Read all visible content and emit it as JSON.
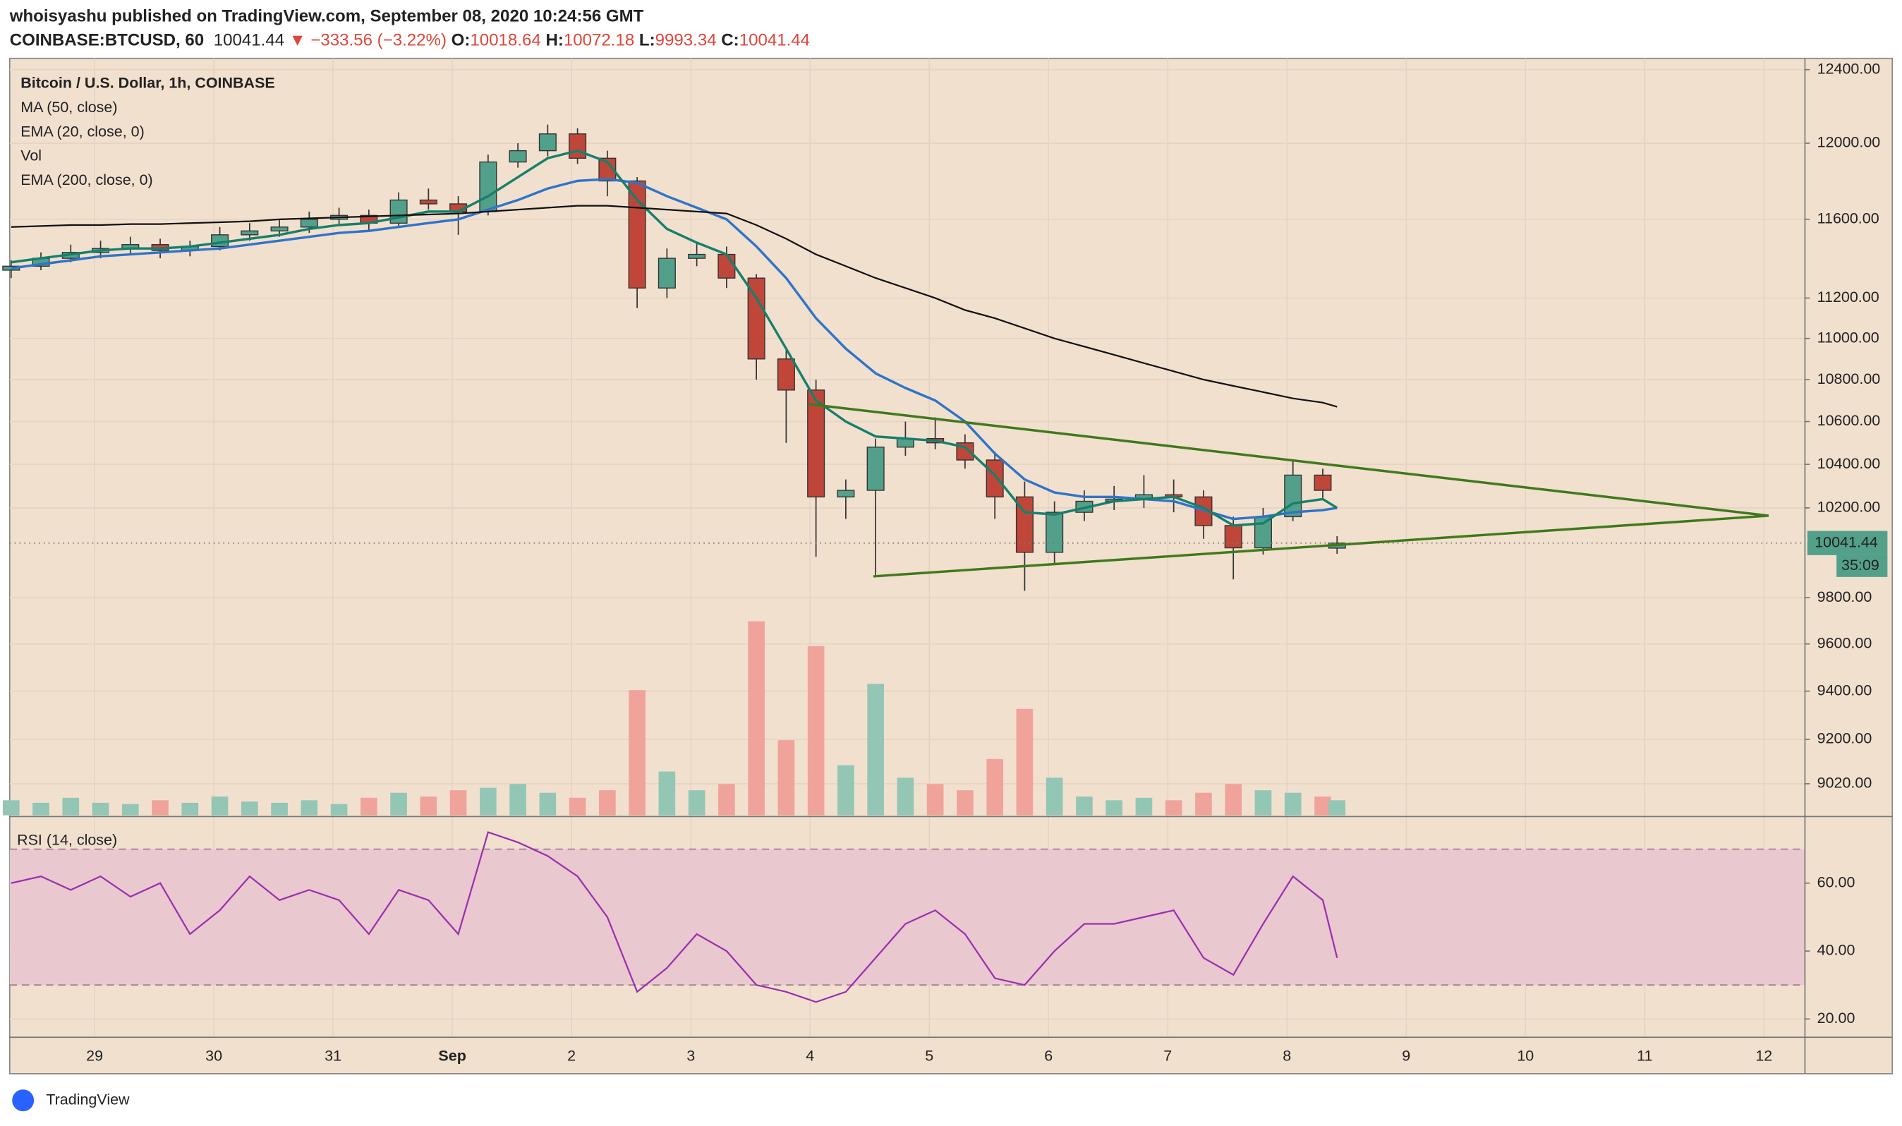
{
  "header": {
    "publisher": "whoisyashu published on TradingView.com, September 08, 2020 10:24:56 GMT",
    "symbol": "COINBASE:BTCUSD, 60",
    "change": "−333.56 (−3.22%)",
    "open_label": "O:",
    "high_label": "H:",
    "low_label": "L:",
    "close_label": "C:",
    "countdown": "35:09"
  },
  "brand": "TradingView",
  "chart_data": [
    {
      "type": "candlestick",
      "title": "Bitcoin / U.S. Dollar, 1h, COINBASE",
      "log": true,
      "grid": true,
      "up_color": "#53a08a",
      "down_color": "#c0463a",
      "x": [
        -0.7,
        -0.45,
        -0.2,
        0.05,
        0.3,
        0.55,
        0.8,
        1.05,
        1.3,
        1.55,
        1.8,
        2.05,
        2.3,
        2.55,
        2.8,
        3.05,
        3.3,
        3.55,
        3.8,
        4.05,
        4.3,
        4.55,
        4.8,
        5.05,
        5.3,
        5.55,
        5.8,
        6.05,
        6.3,
        6.55,
        6.8,
        7.05,
        7.3,
        7.55,
        7.8,
        8.05,
        8.3,
        8.55,
        8.8,
        9.05,
        9.3,
        9.55,
        9.8,
        10.05,
        10.3,
        10.42
      ],
      "open": [
        11340,
        11360,
        11400,
        11430,
        11450,
        11470,
        11440,
        11460,
        11520,
        11540,
        11560,
        11600,
        11620,
        11580,
        11700,
        11680,
        11640,
        11900,
        11960,
        12050,
        11920,
        11800,
        11250,
        11400,
        11420,
        11300,
        10900,
        10750,
        10250,
        10280,
        10480,
        10520,
        10500,
        10420,
        10250,
        10000,
        10180,
        10230,
        10240,
        10260,
        10250,
        10120,
        10020,
        10160,
        10350,
        10018.64
      ],
      "high": [
        11390,
        11430,
        11470,
        11490,
        11510,
        11500,
        11490,
        11560,
        11580,
        11600,
        11640,
        11660,
        11650,
        11740,
        11760,
        11720,
        11940,
        12000,
        12100,
        12080,
        11960,
        11820,
        11450,
        11480,
        11460,
        11320,
        10950,
        10800,
        10330,
        10520,
        10600,
        10620,
        10540,
        10460,
        10320,
        10230,
        10280,
        10300,
        10350,
        10330,
        10280,
        10160,
        10200,
        10420,
        10380,
        10072.18
      ],
      "low": [
        11300,
        11340,
        11380,
        11400,
        11420,
        11400,
        11410,
        11440,
        11490,
        11510,
        11530,
        11570,
        11540,
        11560,
        11650,
        11520,
        11620,
        11870,
        11930,
        11890,
        11720,
        11150,
        11200,
        11360,
        11250,
        10800,
        10500,
        9980,
        10150,
        9900,
        10440,
        10470,
        10380,
        10150,
        9830,
        9950,
        10140,
        10190,
        10200,
        10180,
        10060,
        9880,
        9990,
        10140,
        10240,
        9993.34
      ],
      "close": [
        11360,
        11400,
        11430,
        11450,
        11470,
        11440,
        11460,
        11520,
        11540,
        11560,
        11600,
        11620,
        11580,
        11700,
        11680,
        11640,
        11900,
        11960,
        12050,
        11920,
        11800,
        11250,
        11400,
        11420,
        11300,
        10900,
        10750,
        10250,
        10280,
        10480,
        10520,
        10500,
        10420,
        10250,
        10000,
        10180,
        10230,
        10240,
        10260,
        10250,
        10120,
        10020,
        10160,
        10350,
        10280,
        10041.44
      ],
      "series": [
        {
          "name": "MA (50, close)",
          "color": "#2f74c8",
          "values": [
            11350,
            11370,
            11390,
            11410,
            11420,
            11430,
            11440,
            11450,
            11470,
            11490,
            11510,
            11530,
            11540,
            11560,
            11580,
            11600,
            11650,
            11700,
            11760,
            11800,
            11810,
            11790,
            11720,
            11660,
            11600,
            11460,
            11300,
            11100,
            10950,
            10830,
            10760,
            10700,
            10600,
            10450,
            10330,
            10270,
            10250,
            10250,
            10240,
            10230,
            10190,
            10150,
            10160,
            10180,
            10190,
            10200
          ]
        },
        {
          "name": "EMA (20, close, 0)",
          "color": "#16806a",
          "values": [
            11380,
            11400,
            11420,
            11440,
            11450,
            11450,
            11460,
            11480,
            11500,
            11520,
            11550,
            11570,
            11580,
            11610,
            11640,
            11640,
            11720,
            11820,
            11920,
            11960,
            11900,
            11700,
            11550,
            11480,
            11420,
            11200,
            10950,
            10700,
            10600,
            10530,
            10520,
            10510,
            10480,
            10350,
            10180,
            10170,
            10200,
            10230,
            10240,
            10250,
            10200,
            10120,
            10130,
            10220,
            10240,
            10200
          ]
        },
        {
          "name": "EMA (200, close, 0)",
          "color": "#111111",
          "values": [
            11560,
            11565,
            11570,
            11570,
            11575,
            11575,
            11580,
            11585,
            11590,
            11600,
            11605,
            11610,
            11615,
            11620,
            11625,
            11630,
            11640,
            11650,
            11660,
            11670,
            11670,
            11660,
            11650,
            11640,
            11630,
            11570,
            11500,
            11420,
            11360,
            11300,
            11250,
            11200,
            11140,
            11100,
            11050,
            11000,
            10960,
            10920,
            10880,
            10840,
            10800,
            10770,
            10740,
            10710,
            10690,
            10670
          ]
        }
      ],
      "volume": {
        "name": "Vol",
        "up_color": "#93c6b5",
        "down_color": "#f0a39b",
        "values": [
          12,
          10,
          14,
          10,
          9,
          12,
          10,
          15,
          11,
          10,
          12,
          9,
          14,
          18,
          15,
          20,
          22,
          25,
          18,
          14,
          20,
          100,
          35,
          20,
          25,
          155,
          60,
          135,
          40,
          105,
          30,
          25,
          20,
          45,
          85,
          30,
          15,
          12,
          14,
          12,
          18,
          25,
          20,
          18,
          15,
          12
        ]
      },
      "xlim": [
        -0.712,
        14.344
      ],
      "xticks": [
        {
          "value": 0,
          "label": "29"
        },
        {
          "value": 1,
          "label": "30"
        },
        {
          "value": 2,
          "label": "31"
        },
        {
          "value": 3,
          "label": "Sep"
        },
        {
          "value": 4,
          "label": "2"
        },
        {
          "value": 5,
          "label": "3"
        },
        {
          "value": 6,
          "label": "4"
        },
        {
          "value": 7,
          "label": "5"
        },
        {
          "value": 8,
          "label": "6"
        },
        {
          "value": 9,
          "label": "7"
        },
        {
          "value": 10,
          "label": "8"
        },
        {
          "value": 11,
          "label": "9"
        },
        {
          "value": 12,
          "label": "10"
        },
        {
          "value": 13,
          "label": "11"
        },
        {
          "value": 14,
          "label": "12"
        }
      ],
      "ylim": [
        8894,
        12449
      ],
      "yticks": [
        {
          "value": 12400,
          "label": "12400.00"
        },
        {
          "value": 12000,
          "label": "12000.00"
        },
        {
          "value": 11600,
          "label": "11600.00"
        },
        {
          "value": 11200,
          "label": "11200.00"
        },
        {
          "value": 11000,
          "label": "11000.00"
        },
        {
          "value": 10800,
          "label": "10800.00"
        },
        {
          "value": 10600,
          "label": "10600.00"
        },
        {
          "value": 10400,
          "label": "10400.00"
        },
        {
          "value": 10200,
          "label": "10200.00"
        },
        {
          "value": 9800,
          "label": "9800.00"
        },
        {
          "value": 9600,
          "label": "9600.00"
        },
        {
          "value": 9400,
          "label": "9400.00"
        },
        {
          "value": 9200,
          "label": "9200.00"
        },
        {
          "value": 9020,
          "label": "9020.00"
        }
      ]
    },
    {
      "type": "line",
      "grid": true,
      "band": [
        30,
        70
      ],
      "band_color": "#e9c8cf",
      "series": [
        {
          "name": "RSI (14, close)",
          "color": "#9b2fae",
          "values": [
            60,
            62,
            58,
            62,
            56,
            60,
            45,
            52,
            62,
            55,
            58,
            55,
            45,
            58,
            55,
            45,
            75,
            72,
            68,
            62,
            50,
            28,
            35,
            45,
            40,
            30,
            28,
            25,
            28,
            38,
            48,
            52,
            45,
            32,
            30,
            40,
            48,
            48,
            50,
            52,
            38,
            33,
            48,
            62,
            55,
            38
          ]
        }
      ],
      "ylim": [
        14.6,
        78.9
      ],
      "yticks": [
        {
          "value": 60,
          "label": "60.00"
        },
        {
          "value": 40,
          "label": "40.00"
        },
        {
          "value": 20,
          "label": "20.00"
        }
      ]
    }
  ]
}
